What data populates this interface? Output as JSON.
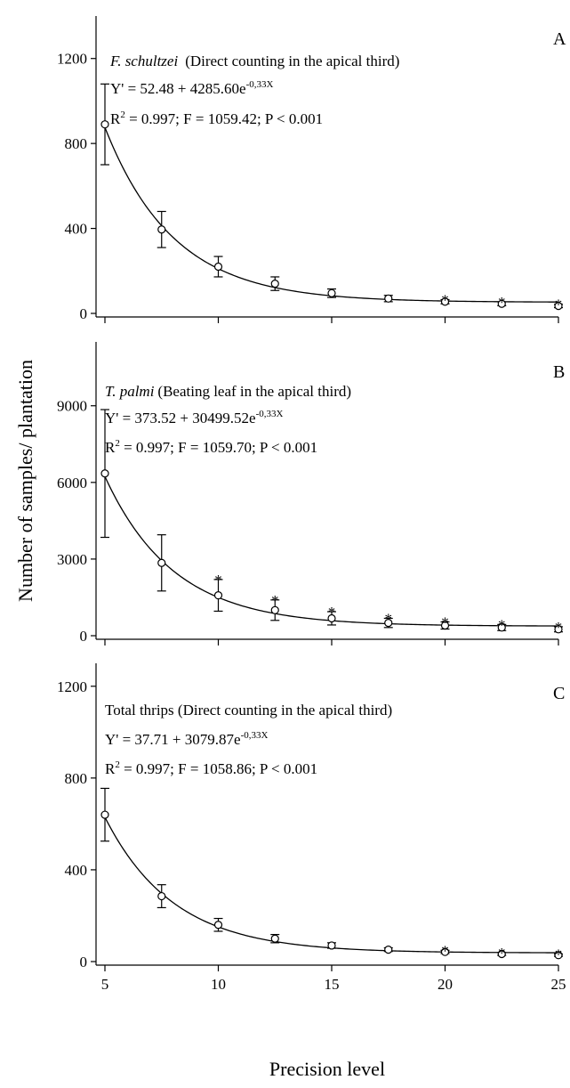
{
  "ylabel": "Number of samples/ plantation",
  "xlabel": "Precision level",
  "xticks": [
    5,
    10,
    15,
    20,
    25
  ],
  "chart_data": [
    {
      "type": "scatter",
      "panel": "A",
      "title_italic": "F. schultzei",
      "title_rest": "(Direct counting in the apical third)",
      "eq_prefix": "Y' = 52.48 + 4285.60e",
      "eq_exp": "-0,33X",
      "stats_r": "R",
      "stats_sup": "2",
      "stats_rest": " = 0.997; F = 1059.42; P < 0.001",
      "model": {
        "a": 52.48,
        "b": 4285.6,
        "k": 0.33
      },
      "xlim": [
        5,
        25
      ],
      "ylim": [
        0,
        1400
      ],
      "yticks": [
        0,
        400,
        800,
        1200
      ],
      "x": [
        5,
        7.5,
        10,
        12.5,
        15,
        17.5,
        20,
        22.5,
        25
      ],
      "y": [
        890,
        395,
        220,
        140,
        95,
        70,
        55,
        45,
        35
      ],
      "err": [
        190,
        85,
        48,
        32,
        20,
        15,
        10,
        9,
        8
      ],
      "star": [
        false,
        false,
        false,
        false,
        false,
        false,
        true,
        true,
        true
      ]
    },
    {
      "type": "scatter",
      "panel": "B",
      "title_italic": "T. palmi",
      "title_rest": "(Beating leaf in the apical third)",
      "eq_prefix": "Y' = 373.52 + 30499.52e",
      "eq_exp": "-0,33X",
      "stats_r": "R",
      "stats_sup": "2",
      "stats_rest": " = 0.997; F = 1059.70; P < 0.001",
      "model": {
        "a": 373.52,
        "b": 30499.52,
        "k": 0.33
      },
      "xlim": [
        5,
        25
      ],
      "ylim": [
        0,
        11500
      ],
      "yticks": [
        0,
        3000,
        6000,
        9000
      ],
      "x": [
        5,
        7.5,
        10,
        12.5,
        15,
        17.5,
        20,
        22.5,
        25
      ],
      "y": [
        6350,
        2850,
        1580,
        1000,
        680,
        500,
        400,
        320,
        250
      ],
      "err": [
        2500,
        1100,
        620,
        400,
        260,
        180,
        140,
        120,
        100
      ],
      "star": [
        false,
        false,
        true,
        true,
        true,
        true,
        true,
        true,
        true
      ]
    },
    {
      "type": "scatter",
      "panel": "C",
      "title_italic": "",
      "title_rest": "Total thrips (Direct counting in the apical third)",
      "eq_prefix": "Y' = 37.71 + 3079.87e",
      "eq_exp": "-0,33X",
      "stats_r": "R",
      "stats_sup": "2",
      "stats_rest": " = 0.997; F = 1058.86; P < 0.001",
      "model": {
        "a": 37.71,
        "b": 3079.87,
        "k": 0.33
      },
      "xlim": [
        5,
        25
      ],
      "ylim": [
        0,
        1300
      ],
      "yticks": [
        0,
        400,
        800,
        1200
      ],
      "x": [
        5,
        7.5,
        10,
        12.5,
        15,
        17.5,
        20,
        22.5,
        25
      ],
      "y": [
        640,
        285,
        160,
        100,
        70,
        52,
        42,
        33,
        28
      ],
      "err": [
        115,
        50,
        28,
        18,
        12,
        8,
        7,
        6,
        5
      ],
      "star": [
        false,
        false,
        false,
        false,
        false,
        false,
        true,
        true,
        true
      ]
    }
  ]
}
